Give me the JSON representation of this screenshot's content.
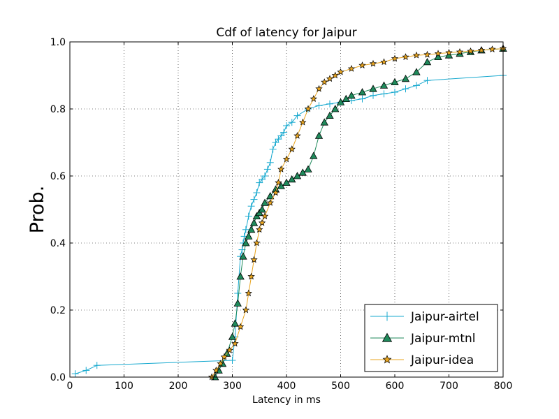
{
  "chart_data": {
    "type": "line",
    "title": "Cdf of latency for Jaipur",
    "xlabel": "Latency in ms",
    "ylabel": "Prob.",
    "xlim": [
      0,
      800
    ],
    "ylim": [
      0,
      1.0
    ],
    "xticks": [
      "0",
      "100",
      "200",
      "300",
      "400",
      "500",
      "600",
      "700",
      "800"
    ],
    "yticks": [
      "0.0",
      "0.2",
      "0.4",
      "0.6",
      "0.8",
      "1.0"
    ],
    "grid": true,
    "legend_position": "bottom-right",
    "series": [
      {
        "name": "Jaipur-airtel",
        "color": "#17a9cf",
        "marker": "plus",
        "x": [
          10,
          30,
          50,
          300,
          305,
          310,
          315,
          318,
          320,
          322,
          325,
          330,
          335,
          340,
          345,
          350,
          355,
          360,
          365,
          370,
          375,
          380,
          385,
          390,
          395,
          400,
          410,
          420,
          440,
          460,
          480,
          500,
          520,
          540,
          560,
          580,
          600,
          620,
          640,
          660,
          800
        ],
        "y": [
          0.01,
          0.02,
          0.035,
          0.05,
          0.12,
          0.25,
          0.36,
          0.38,
          0.4,
          0.42,
          0.44,
          0.48,
          0.51,
          0.53,
          0.55,
          0.58,
          0.59,
          0.6,
          0.62,
          0.64,
          0.68,
          0.7,
          0.71,
          0.72,
          0.73,
          0.75,
          0.76,
          0.78,
          0.8,
          0.81,
          0.815,
          0.82,
          0.825,
          0.83,
          0.84,
          0.845,
          0.85,
          0.86,
          0.87,
          0.885,
          0.9
        ]
      },
      {
        "name": "Jaipur-mtnl",
        "color": "#1f8a5b",
        "marker": "triangle",
        "x": [
          268,
          275,
          282,
          290,
          300,
          305,
          310,
          315,
          320,
          325,
          330,
          335,
          340,
          345,
          350,
          355,
          360,
          370,
          380,
          390,
          400,
          410,
          420,
          430,
          440,
          450,
          460,
          470,
          480,
          490,
          500,
          510,
          520,
          540,
          560,
          580,
          600,
          620,
          640,
          660,
          680,
          700,
          720,
          740,
          760,
          800
        ],
        "y": [
          0.0,
          0.02,
          0.04,
          0.07,
          0.12,
          0.16,
          0.22,
          0.3,
          0.36,
          0.4,
          0.42,
          0.44,
          0.46,
          0.48,
          0.49,
          0.5,
          0.52,
          0.54,
          0.56,
          0.57,
          0.58,
          0.59,
          0.6,
          0.61,
          0.62,
          0.66,
          0.72,
          0.76,
          0.78,
          0.8,
          0.82,
          0.83,
          0.84,
          0.85,
          0.86,
          0.87,
          0.88,
          0.89,
          0.91,
          0.94,
          0.955,
          0.96,
          0.965,
          0.97,
          0.975,
          0.98
        ]
      },
      {
        "name": "Jaipur-idea",
        "color": "#e8a41f",
        "marker": "star",
        "x": [
          262,
          270,
          278,
          285,
          295,
          305,
          315,
          325,
          330,
          335,
          340,
          345,
          350,
          355,
          360,
          370,
          380,
          385,
          390,
          400,
          410,
          420,
          430,
          440,
          450,
          460,
          470,
          480,
          490,
          500,
          520,
          540,
          560,
          580,
          600,
          620,
          640,
          660,
          680,
          700,
          720,
          740,
          760,
          780,
          800
        ],
        "y": [
          0.0,
          0.02,
          0.04,
          0.06,
          0.08,
          0.1,
          0.15,
          0.2,
          0.25,
          0.3,
          0.35,
          0.4,
          0.44,
          0.46,
          0.48,
          0.52,
          0.55,
          0.58,
          0.62,
          0.65,
          0.68,
          0.72,
          0.76,
          0.8,
          0.83,
          0.86,
          0.88,
          0.89,
          0.9,
          0.91,
          0.92,
          0.93,
          0.935,
          0.94,
          0.95,
          0.955,
          0.96,
          0.962,
          0.965,
          0.968,
          0.97,
          0.972,
          0.975,
          0.978,
          0.98
        ]
      }
    ]
  }
}
